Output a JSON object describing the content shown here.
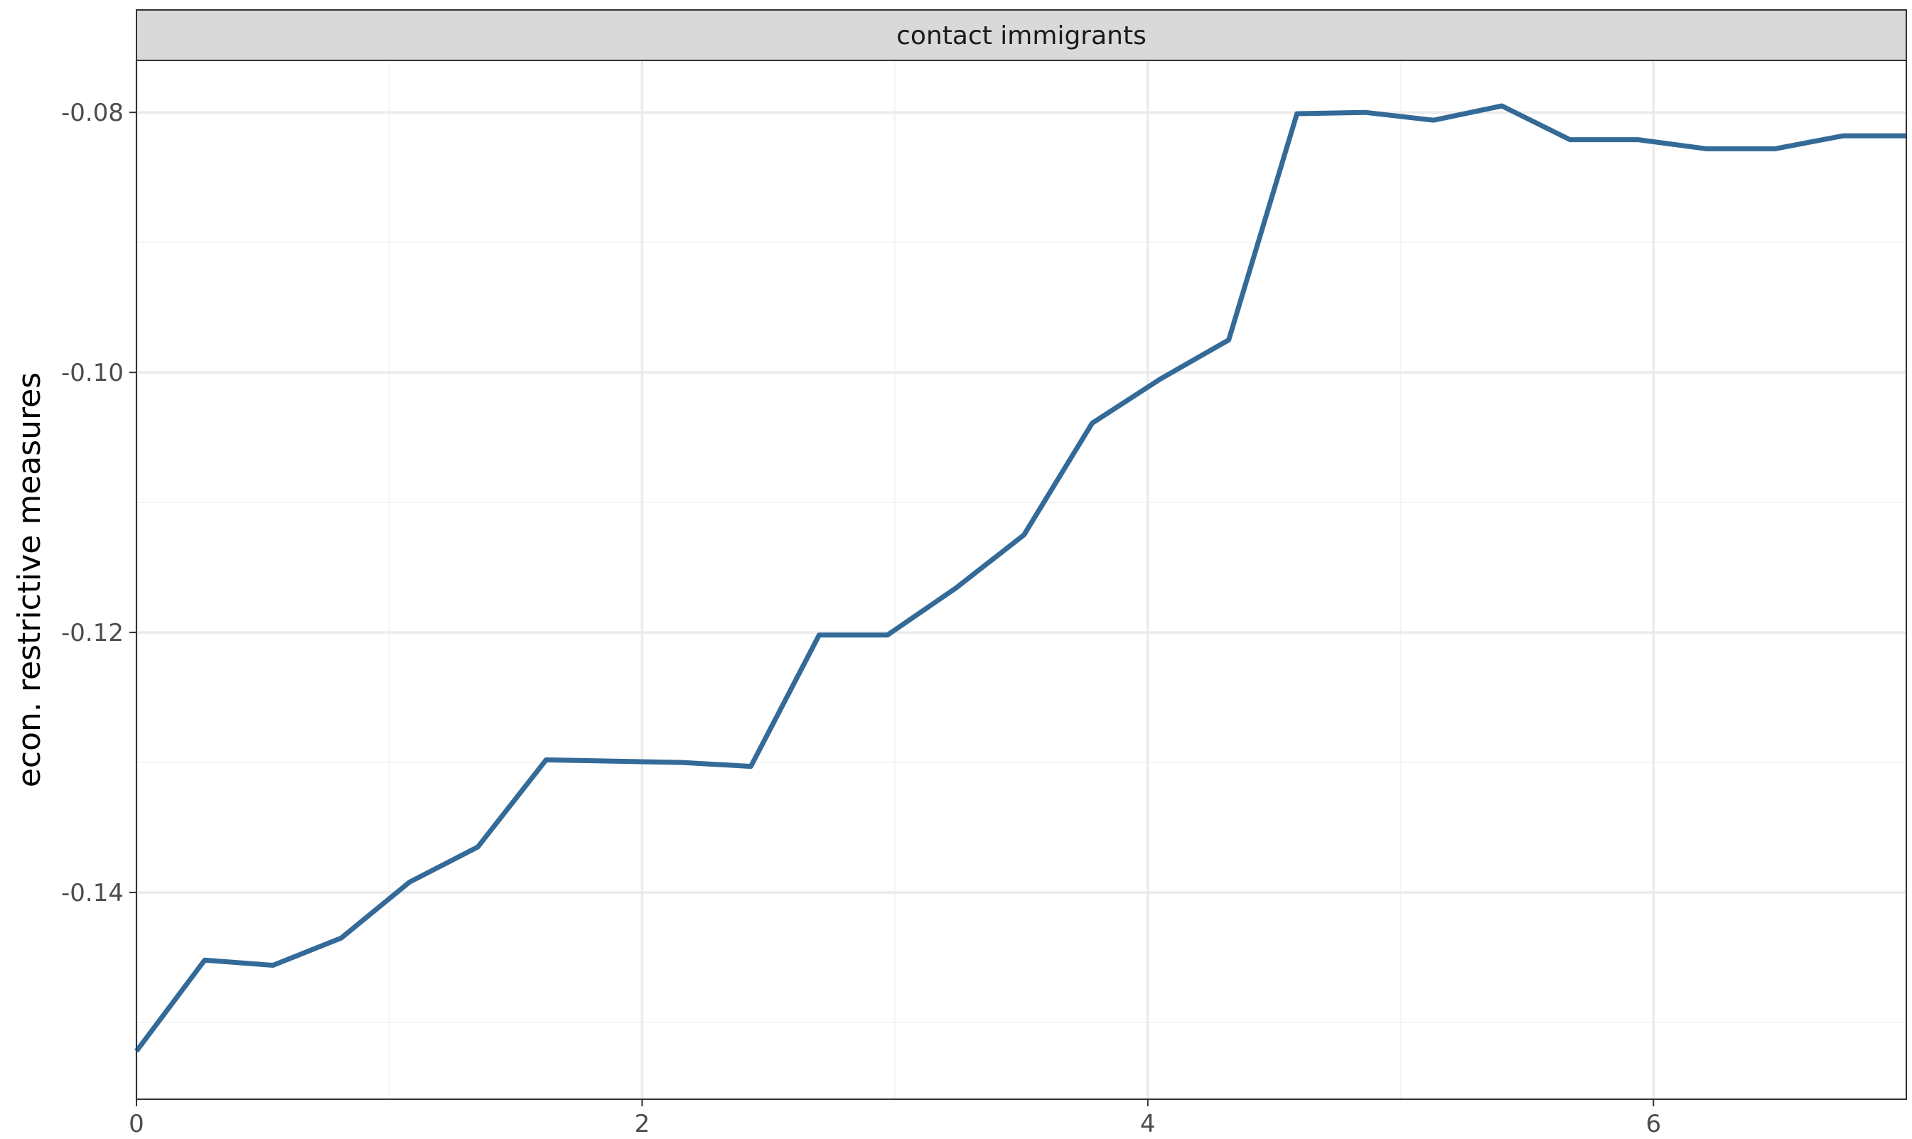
{
  "chart_data": {
    "type": "line",
    "facet_label": "contact immigrants",
    "xlabel": "",
    "ylabel": "econ. restrictive measures",
    "xlim": [
      0,
      7
    ],
    "ylim": [
      -0.1559,
      -0.076
    ],
    "x_ticks": [
      0,
      2,
      4,
      6
    ],
    "x_tick_labels": [
      "0",
      "2",
      "4",
      "6"
    ],
    "y_ticks": [
      -0.14,
      -0.12,
      -0.1,
      -0.08
    ],
    "y_tick_labels": [
      "-0.14",
      "-0.12",
      "-0.10",
      "-0.08"
    ],
    "x_minor_ticks": [
      1,
      3,
      5
    ],
    "y_minor_ticks": [
      -0.15,
      -0.13,
      -0.11,
      -0.09
    ],
    "grid": true,
    "legend": "none",
    "series": [
      {
        "color": "#336a98",
        "points": [
          [
            0.0,
            -0.1522
          ],
          [
            0.27,
            -0.1452
          ],
          [
            0.54,
            -0.1456
          ],
          [
            0.81,
            -0.1435
          ],
          [
            1.08,
            -0.1392
          ],
          [
            1.35,
            -0.1365
          ],
          [
            1.62,
            -0.1298
          ],
          [
            2.16,
            -0.13
          ],
          [
            2.43,
            -0.1303
          ],
          [
            2.7,
            -0.1202
          ],
          [
            2.97,
            -0.1202
          ],
          [
            3.24,
            -0.1166
          ],
          [
            3.51,
            -0.1125
          ],
          [
            3.78,
            -0.1039
          ],
          [
            4.05,
            -0.1005
          ],
          [
            4.32,
            -0.0975
          ],
          [
            4.59,
            -0.0801
          ],
          [
            4.86,
            -0.08
          ],
          [
            5.13,
            -0.0806
          ],
          [
            5.4,
            -0.0795
          ],
          [
            5.67,
            -0.0821
          ],
          [
            5.94,
            -0.0821
          ],
          [
            6.21,
            -0.0828
          ],
          [
            6.48,
            -0.0828
          ],
          [
            6.75,
            -0.0818
          ],
          [
            7.0,
            -0.0818
          ]
        ]
      }
    ]
  },
  "style": {
    "strip_fill": "#d9d9d9",
    "strip_border": "#333333",
    "panel_border": "#333333",
    "grid_major": "#ebebeb",
    "grid_minor": "#f4f4f4",
    "axis_text": "#4d4d4d",
    "title_text": "#000000"
  }
}
